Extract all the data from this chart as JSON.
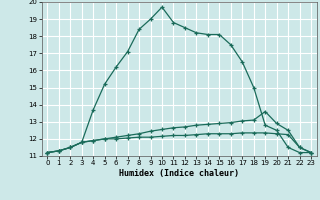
{
  "xlabel": "Humidex (Indice chaleur)",
  "ylabel": "",
  "xlim": [
    -0.5,
    23.5
  ],
  "ylim": [
    11,
    20
  ],
  "xticks": [
    0,
    1,
    2,
    3,
    4,
    5,
    6,
    7,
    8,
    9,
    10,
    11,
    12,
    13,
    14,
    15,
    16,
    17,
    18,
    19,
    20,
    21,
    22,
    23
  ],
  "yticks": [
    11,
    12,
    13,
    14,
    15,
    16,
    17,
    18,
    19,
    20
  ],
  "background_color": "#cde8e8",
  "grid_color": "#ffffff",
  "line_color": "#1a6b5a",
  "line1_x": [
    0,
    1,
    2,
    3,
    4,
    5,
    6,
    7,
    8,
    9,
    10,
    11,
    12,
    13,
    14,
    15,
    16,
    17,
    18,
    19,
    20,
    21,
    22,
    23
  ],
  "line1_y": [
    11.2,
    11.3,
    11.5,
    11.8,
    13.7,
    15.2,
    16.2,
    17.1,
    18.4,
    19.0,
    19.7,
    18.8,
    18.5,
    18.2,
    18.1,
    18.1,
    17.5,
    16.5,
    15.0,
    12.8,
    12.5,
    11.5,
    11.2,
    11.2
  ],
  "line2_x": [
    0,
    1,
    2,
    3,
    4,
    5,
    6,
    7,
    8,
    9,
    10,
    11,
    12,
    13,
    14,
    15,
    16,
    17,
    18,
    19,
    20,
    21,
    22,
    23
  ],
  "line2_y": [
    11.2,
    11.3,
    11.5,
    11.8,
    11.9,
    12.0,
    12.1,
    12.2,
    12.3,
    12.45,
    12.55,
    12.65,
    12.7,
    12.8,
    12.85,
    12.9,
    12.95,
    13.05,
    13.1,
    13.6,
    12.9,
    12.5,
    11.5,
    11.2
  ],
  "line3_x": [
    0,
    1,
    2,
    3,
    4,
    5,
    6,
    7,
    8,
    9,
    10,
    11,
    12,
    13,
    14,
    15,
    16,
    17,
    18,
    19,
    20,
    21,
    22,
    23
  ],
  "line3_y": [
    11.2,
    11.3,
    11.5,
    11.8,
    11.9,
    12.0,
    12.0,
    12.05,
    12.1,
    12.1,
    12.15,
    12.2,
    12.2,
    12.25,
    12.3,
    12.3,
    12.3,
    12.35,
    12.35,
    12.35,
    12.3,
    12.25,
    11.5,
    11.2
  ]
}
